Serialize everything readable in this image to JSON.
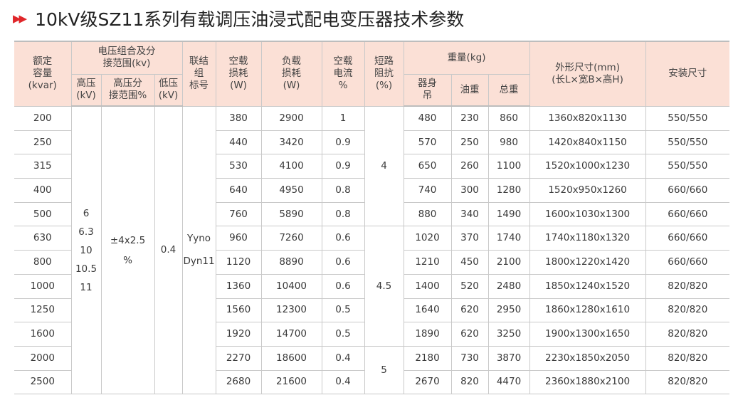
{
  "title": "10kV级SZ11系列有载调压油浸式配电变压器技术参数",
  "colors": {
    "accent": "#e0262a",
    "header_bg": "#fbe0d6"
  },
  "headers": {
    "capacity": "额定\n容量\n(kvar)",
    "voltage_group": "电压组合及分\n接范围(kv)",
    "hv": "高压\n(kV)",
    "tap": "高压分\n接范围%",
    "lv": "低压\n(kV)",
    "connection": "联结\n组\n标号",
    "no_load_loss": "空载\n损耗\n(W)",
    "load_loss": "负载\n损耗\n(W)",
    "no_load_current": "空载\n电流\n%",
    "impedance": "短路\n阻抗\n(%)",
    "weight": "重量(kg)",
    "body": "器身\n吊",
    "oil": "油重",
    "total": "总重",
    "dimensions": "外形尺寸(mm)\n(长L×宽B×高H)",
    "install": "安装尺寸"
  },
  "merged": {
    "hv": [
      "6",
      "6.3",
      "10",
      "10.5",
      "11"
    ],
    "tap": [
      "±4x2.5",
      "%"
    ],
    "lv": "0.4",
    "connection": [
      "Yyno",
      "Dyn11"
    ],
    "impedance": [
      "4",
      "4.5",
      "5"
    ]
  },
  "rows": [
    {
      "cap": "200",
      "nll": "380",
      "ll": "2900",
      "nlc": "1",
      "body": "480",
      "oil": "230",
      "total": "860",
      "dim": "1360x820x1130",
      "inst": "550/550"
    },
    {
      "cap": "250",
      "nll": "440",
      "ll": "3420",
      "nlc": "0.9",
      "body": "570",
      "oil": "250",
      "total": "980",
      "dim": "1420x840x1150",
      "inst": "550/550"
    },
    {
      "cap": "315",
      "nll": "530",
      "ll": "4100",
      "nlc": "0.9",
      "body": "650",
      "oil": "260",
      "total": "1100",
      "dim": "1520x1000x1230",
      "inst": "550/550"
    },
    {
      "cap": "400",
      "nll": "640",
      "ll": "4950",
      "nlc": "0.8",
      "body": "740",
      "oil": "300",
      "total": "1280",
      "dim": "1520x950x1260",
      "inst": "660/660"
    },
    {
      "cap": "500",
      "nll": "760",
      "ll": "5890",
      "nlc": "0.8",
      "body": "880",
      "oil": "340",
      "total": "1490",
      "dim": "1600x1030x1300",
      "inst": "660/660"
    },
    {
      "cap": "630",
      "nll": "960",
      "ll": "7260",
      "nlc": "0.6",
      "body": "1020",
      "oil": "370",
      "total": "1740",
      "dim": "1740x1180x1320",
      "inst": "660/660"
    },
    {
      "cap": "800",
      "nll": "1120",
      "ll": "8890",
      "nlc": "0.6",
      "body": "1210",
      "oil": "450",
      "total": "2100",
      "dim": "1800x1220x1420",
      "inst": "660/660"
    },
    {
      "cap": "1000",
      "nll": "1360",
      "ll": "10400",
      "nlc": "0.6",
      "body": "1400",
      "oil": "520",
      "total": "2480",
      "dim": "1850x1240x1520",
      "inst": "820/820"
    },
    {
      "cap": "1250",
      "nll": "1560",
      "ll": "12300",
      "nlc": "0.5",
      "body": "1640",
      "oil": "620",
      "total": "2950",
      "dim": "1860x1280x1610",
      "inst": "820/820"
    },
    {
      "cap": "1600",
      "nll": "1920",
      "ll": "14700",
      "nlc": "0.5",
      "body": "1890",
      "oil": "620",
      "total": "3250",
      "dim": "1900x1300x1650",
      "inst": "820/820"
    },
    {
      "cap": "2000",
      "nll": "2270",
      "ll": "18600",
      "nlc": "0.4",
      "body": "2180",
      "oil": "730",
      "total": "3870",
      "dim": "2230x1850x2050",
      "inst": "820/820"
    },
    {
      "cap": "2500",
      "nll": "2680",
      "ll": "21600",
      "nlc": "0.4",
      "body": "2670",
      "oil": "820",
      "total": "4470",
      "dim": "2360x1880x2100",
      "inst": "820/820"
    }
  ]
}
